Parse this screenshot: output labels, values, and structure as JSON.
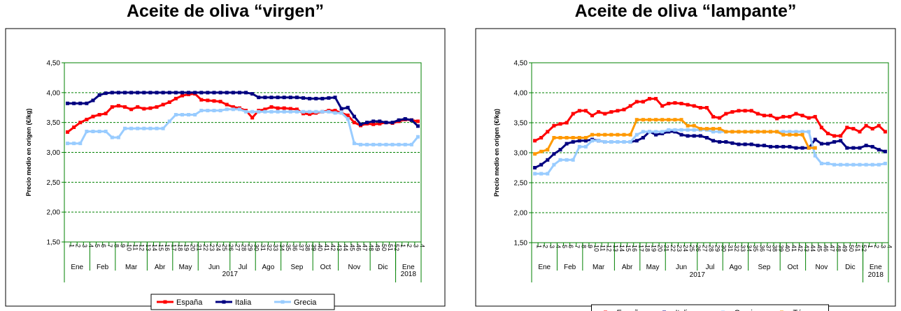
{
  "chart_data": [
    {
      "type": "line",
      "title": "Aceite de oliva “virgen”",
      "ylabel": "Precio medio en origen (€/kg)",
      "ylim": [
        1.5,
        4.5
      ],
      "yticks": [
        "1,50",
        "2,00",
        "2,50",
        "3,00",
        "3,50",
        "4,00",
        "4,50"
      ],
      "x_week_labels": [
        "1",
        "2",
        "3",
        "4",
        "5",
        "6",
        "7",
        "8",
        "9",
        "10",
        "11",
        "12",
        "13",
        "14",
        "15",
        "16",
        "17",
        "18",
        "19",
        "20",
        "21",
        "22",
        "23",
        "24",
        "25",
        "26",
        "27",
        "28",
        "29",
        "30",
        "31",
        "32",
        "33",
        "34",
        "35",
        "36",
        "37",
        "38",
        "39",
        "40",
        "41",
        "42",
        "43",
        "44",
        "45",
        "46",
        "47",
        "48",
        "49",
        "50",
        "51",
        "52",
        "1",
        "2",
        "3",
        "4"
      ],
      "months": [
        "Ene",
        "Feb",
        "Mar",
        "Abr",
        "May",
        "Jun",
        "Jul",
        "Ago",
        "Sep",
        "Oct",
        "Nov",
        "Dic",
        "Ene"
      ],
      "years": [
        "2017",
        "2018"
      ],
      "grid": "horizontal dashed",
      "legend": "bottom",
      "series": [
        {
          "name": "España",
          "color": "#ff0000",
          "values": [
            3.34,
            3.42,
            3.5,
            3.55,
            3.6,
            3.63,
            3.65,
            3.76,
            3.78,
            3.76,
            3.72,
            3.76,
            3.73,
            3.74,
            3.76,
            3.8,
            3.84,
            3.9,
            3.95,
            3.97,
            3.98,
            3.88,
            3.87,
            3.86,
            3.85,
            3.8,
            3.76,
            3.74,
            3.7,
            3.58,
            3.7,
            3.72,
            3.76,
            3.74,
            3.74,
            3.73,
            3.72,
            3.65,
            3.64,
            3.66,
            3.68,
            3.7,
            3.7,
            3.66,
            3.62,
            3.5,
            3.45,
            3.48,
            3.47,
            3.48,
            3.5,
            3.49,
            3.52,
            3.55,
            3.54,
            3.52
          ]
        },
        {
          "name": "Italia",
          "color": "#000080",
          "values": [
            3.82,
            3.82,
            3.82,
            3.82,
            3.87,
            3.96,
            3.99,
            4.0,
            4.0,
            4.0,
            4.0,
            4.0,
            4.0,
            4.0,
            4.0,
            4.0,
            4.0,
            4.0,
            4.0,
            4.0,
            4.0,
            4.0,
            4.0,
            4.0,
            4.0,
            4.0,
            4.0,
            4.0,
            4.0,
            3.98,
            3.92,
            3.92,
            3.92,
            3.92,
            3.92,
            3.92,
            3.92,
            3.91,
            3.9,
            3.9,
            3.9,
            3.91,
            3.92,
            3.73,
            3.75,
            3.6,
            3.47,
            3.5,
            3.52,
            3.52,
            3.5,
            3.5,
            3.54,
            3.56,
            3.54,
            3.44
          ]
        },
        {
          "name": "Grecia",
          "color": "#99ccff",
          "values": [
            3.15,
            3.15,
            3.15,
            3.35,
            3.35,
            3.35,
            3.35,
            3.25,
            3.25,
            3.4,
            3.4,
            3.4,
            3.4,
            3.4,
            3.4,
            3.4,
            3.52,
            3.63,
            3.63,
            3.63,
            3.63,
            3.7,
            3.7,
            3.7,
            3.7,
            3.72,
            3.72,
            3.72,
            3.68,
            3.68,
            3.68,
            3.68,
            3.68,
            3.68,
            3.68,
            3.68,
            3.68,
            3.68,
            3.68,
            3.68,
            3.68,
            3.68,
            3.66,
            3.66,
            3.56,
            3.15,
            3.13,
            3.13,
            3.13,
            3.13,
            3.13,
            3.13,
            3.13,
            3.13,
            3.13,
            3.26
          ]
        }
      ]
    },
    {
      "type": "line",
      "title": "Aceite de oliva “lampante”",
      "ylabel": "Precio medio en origen (€/kg)",
      "ylim": [
        1.5,
        4.5
      ],
      "yticks": [
        "1,50",
        "2,00",
        "2,50",
        "3,00",
        "3,50",
        "4,00",
        "4,50"
      ],
      "x_week_labels": [
        "1",
        "2",
        "3",
        "4",
        "5",
        "6",
        "7",
        "8",
        "9",
        "10",
        "11",
        "12",
        "13",
        "14",
        "15",
        "16",
        "17",
        "18",
        "19",
        "20",
        "21",
        "22",
        "23",
        "24",
        "25",
        "26",
        "27",
        "28",
        "29",
        "30",
        "31",
        "32",
        "33",
        "34",
        "35",
        "36",
        "37",
        "38",
        "39",
        "40",
        "41",
        "42",
        "43",
        "44",
        "45",
        "46",
        "47",
        "48",
        "49",
        "50",
        "51",
        "52",
        "1",
        "2",
        "3",
        "4"
      ],
      "months": [
        "Ene",
        "Feb",
        "Mar",
        "Abr",
        "May",
        "Jun",
        "Jul",
        "Ago",
        "Sep",
        "Oct",
        "Nov",
        "Dic",
        "Ene"
      ],
      "years": [
        "2017",
        "2018"
      ],
      "grid": "horizontal dashed",
      "legend": "bottom",
      "series": [
        {
          "name": "España",
          "color": "#ff0000",
          "values": [
            3.2,
            3.25,
            3.35,
            3.45,
            3.48,
            3.5,
            3.65,
            3.7,
            3.7,
            3.62,
            3.68,
            3.65,
            3.68,
            3.7,
            3.72,
            3.78,
            3.85,
            3.85,
            3.9,
            3.9,
            3.78,
            3.82,
            3.83,
            3.82,
            3.8,
            3.78,
            3.75,
            3.75,
            3.6,
            3.58,
            3.65,
            3.68,
            3.7,
            3.7,
            3.7,
            3.65,
            3.62,
            3.62,
            3.57,
            3.6,
            3.6,
            3.65,
            3.62,
            3.58,
            3.6,
            3.42,
            3.32,
            3.28,
            3.28,
            3.42,
            3.4,
            3.35,
            3.45,
            3.4,
            3.45,
            3.35
          ]
        },
        {
          "name": "Italia",
          "color": "#000080",
          "values": [
            2.75,
            2.8,
            2.88,
            2.98,
            3.05,
            3.15,
            3.18,
            3.2,
            3.2,
            3.22,
            3.2,
            3.18,
            3.18,
            3.18,
            3.18,
            3.18,
            3.2,
            3.25,
            3.35,
            3.3,
            3.32,
            3.35,
            3.35,
            3.3,
            3.28,
            3.28,
            3.28,
            3.25,
            3.2,
            3.18,
            3.18,
            3.16,
            3.14,
            3.14,
            3.14,
            3.12,
            3.12,
            3.1,
            3.1,
            3.1,
            3.1,
            3.08,
            3.08,
            3.08,
            3.22,
            3.15,
            3.15,
            3.18,
            3.2,
            3.08,
            3.08,
            3.08,
            3.12,
            3.1,
            3.05,
            3.02
          ]
        },
        {
          "name": "Grecia",
          "color": "#99ccff",
          "values": [
            2.65,
            2.65,
            2.65,
            2.8,
            2.88,
            2.88,
            2.88,
            3.1,
            3.1,
            3.2,
            3.2,
            3.18,
            3.18,
            3.18,
            3.18,
            3.18,
            3.3,
            3.35,
            3.35,
            3.35,
            3.35,
            3.38,
            3.38,
            3.38,
            3.38,
            3.38,
            3.38,
            3.38,
            3.35,
            3.35,
            3.35,
            3.35,
            3.35,
            3.35,
            3.35,
            3.35,
            3.35,
            3.35,
            3.35,
            3.35,
            3.35,
            3.35,
            3.35,
            3.35,
            2.95,
            2.82,
            2.82,
            2.8,
            2.8,
            2.8,
            2.8,
            2.8,
            2.8,
            2.8,
            2.8,
            2.82
          ]
        },
        {
          "name": "Túnez",
          "color": "#ff9900",
          "values": [
            2.98,
            3.02,
            3.05,
            3.25,
            3.25,
            3.25,
            3.25,
            3.25,
            3.25,
            3.3,
            3.3,
            3.3,
            3.3,
            3.3,
            3.3,
            3.3,
            3.55,
            3.55,
            3.55,
            3.55,
            3.55,
            3.55,
            3.55,
            3.55,
            3.45,
            3.45,
            3.4,
            3.4,
            3.4,
            3.4,
            3.35,
            3.35,
            3.35,
            3.35,
            3.35,
            3.35,
            3.35,
            3.35,
            3.35,
            3.3,
            3.3,
            3.3,
            3.3,
            3.08,
            3.08
          ]
        }
      ]
    }
  ]
}
